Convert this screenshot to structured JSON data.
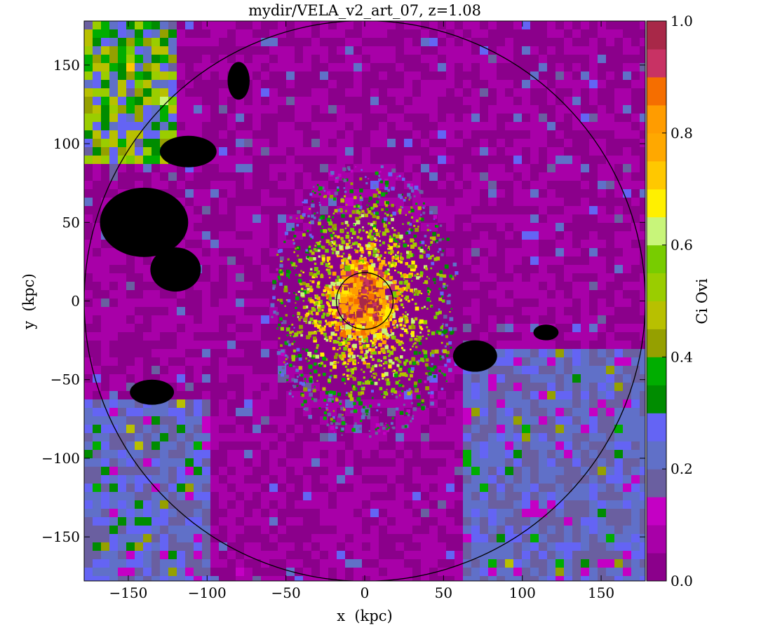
{
  "chart_data": {
    "type": "heatmap",
    "title": "mydir/VELA_v2_art_07, z=1.08",
    "xlabel": "x  (kpc)",
    "ylabel": "y  (kpc)",
    "xlim": [
      -178,
      178
    ],
    "ylim": [
      -178,
      178
    ],
    "x_ticks": [
      -150,
      -100,
      -50,
      0,
      50,
      100,
      150
    ],
    "x_tick_labels": [
      "−150",
      "−100",
      "−50",
      "0",
      "50",
      "100",
      "150"
    ],
    "y_ticks": [
      -150,
      -100,
      -50,
      0,
      50,
      100,
      150
    ],
    "y_tick_labels": [
      "−150",
      "−100",
      "−50",
      "0",
      "50",
      "100",
      "150"
    ],
    "colorbar": {
      "label": "Ci Ovi",
      "range": [
        0.0,
        1.0
      ],
      "ticks": [
        0.0,
        0.2,
        0.4,
        0.6,
        0.8,
        1.0
      ],
      "tick_labels": [
        "0.0",
        "0.2",
        "0.4",
        "0.6",
        "0.8",
        "1.0"
      ],
      "levels": [
        {
          "from": 0.0,
          "to": 0.05,
          "color": "#8b008b"
        },
        {
          "from": 0.05,
          "to": 0.1,
          "color": "#a800a8"
        },
        {
          "from": 0.1,
          "to": 0.15,
          "color": "#c400c4"
        },
        {
          "from": 0.15,
          "to": 0.2,
          "color": "#6a5fa0"
        },
        {
          "from": 0.2,
          "to": 0.25,
          "color": "#6070c8"
        },
        {
          "from": 0.25,
          "to": 0.3,
          "color": "#6464f4"
        },
        {
          "from": 0.3,
          "to": 0.35,
          "color": "#008c00"
        },
        {
          "from": 0.35,
          "to": 0.4,
          "color": "#00ad00"
        },
        {
          "from": 0.4,
          "to": 0.45,
          "color": "#95a000"
        },
        {
          "from": 0.45,
          "to": 0.5,
          "color": "#b8c000"
        },
        {
          "from": 0.5,
          "to": 0.55,
          "color": "#9acd00"
        },
        {
          "from": 0.55,
          "to": 0.6,
          "color": "#78cc00"
        },
        {
          "from": 0.6,
          "to": 0.65,
          "color": "#c8f57a"
        },
        {
          "from": 0.65,
          "to": 0.7,
          "color": "#fff000"
        },
        {
          "from": 0.7,
          "to": 0.75,
          "color": "#ffc800"
        },
        {
          "from": 0.75,
          "to": 0.8,
          "color": "#ffa800"
        },
        {
          "from": 0.8,
          "to": 0.85,
          "color": "#ff9c00"
        },
        {
          "from": 0.85,
          "to": 0.9,
          "color": "#f56e00"
        },
        {
          "from": 0.9,
          "to": 0.95,
          "color": "#c83264"
        },
        {
          "from": 0.95,
          "to": 1.0,
          "color": "#a82848"
        }
      ]
    },
    "circles": [
      {
        "name": "outer-radius",
        "cx": 0,
        "cy": 0,
        "r": 178
      },
      {
        "name": "inner-radius",
        "cx": 0,
        "cy": 0,
        "r": 18
      }
    ],
    "black_regions": [
      {
        "cx": -140,
        "cy": 50,
        "rx": 28,
        "ry": 22
      },
      {
        "cx": -112,
        "cy": 95,
        "rx": 18,
        "ry": 10
      },
      {
        "cx": -120,
        "cy": 20,
        "rx": 16,
        "ry": 14
      },
      {
        "cx": -80,
        "cy": 140,
        "rx": 7,
        "ry": 12
      },
      {
        "cx": -135,
        "cy": -58,
        "rx": 14,
        "ry": 8
      },
      {
        "cx": 70,
        "cy": -35,
        "rx": 14,
        "ry": 10
      },
      {
        "cx": 115,
        "cy": -20,
        "rx": 8,
        "ry": 5
      }
    ],
    "background_color": "#8b008b"
  }
}
